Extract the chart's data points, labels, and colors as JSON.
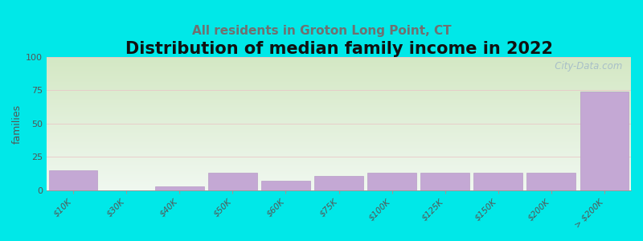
{
  "title": "Distribution of median family income in 2022",
  "subtitle": "All residents in Groton Long Point, CT",
  "tick_labels": [
    "$10K",
    "$30K",
    "$40K",
    "$50K",
    "$60K",
    "$75K",
    "$100K",
    "$125K",
    "$150K",
    "$200K",
    "> $200K"
  ],
  "values": [
    15,
    0,
    3,
    13,
    7,
    11,
    13,
    13,
    13,
    13,
    74
  ],
  "bar_color": "#c4a8d4",
  "bar_edge_color": "#b090c0",
  "background_color": "#00e8e8",
  "plot_bg_top": "#f0f8f0",
  "plot_bg_bottom": "#d4e8c4",
  "ylabel": "families",
  "ylim": [
    0,
    100
  ],
  "yticks": [
    0,
    25,
    50,
    75,
    100
  ],
  "watermark": "   City-Data.com",
  "title_fontsize": 15,
  "subtitle_fontsize": 11,
  "grid_color": "#e8c8c8",
  "subtitle_color": "#707070"
}
